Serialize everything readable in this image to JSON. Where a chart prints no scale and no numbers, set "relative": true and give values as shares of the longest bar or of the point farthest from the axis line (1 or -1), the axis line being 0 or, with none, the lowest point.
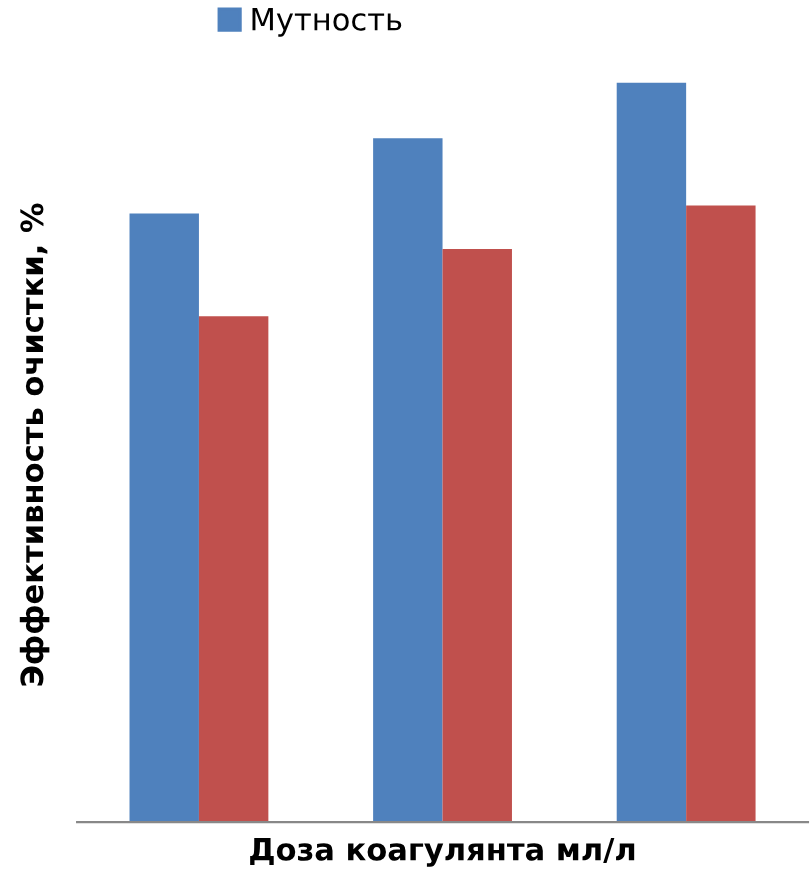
{
  "chart_data": {
    "type": "bar",
    "relative": true,
    "xlabel": "Доза коагулянта мл/л",
    "ylabel": "Эффективность очистки, %",
    "categories": [
      null,
      null,
      null
    ],
    "legend": "top",
    "series": [
      {
        "name": "Мутность",
        "color": "#4f81bd",
        "values": [
          0.823,
          0.925,
          1
        ]
      },
      {
        "color": "#c0504d",
        "values": [
          0.684,
          0.775,
          0.834
        ]
      }
    ]
  }
}
